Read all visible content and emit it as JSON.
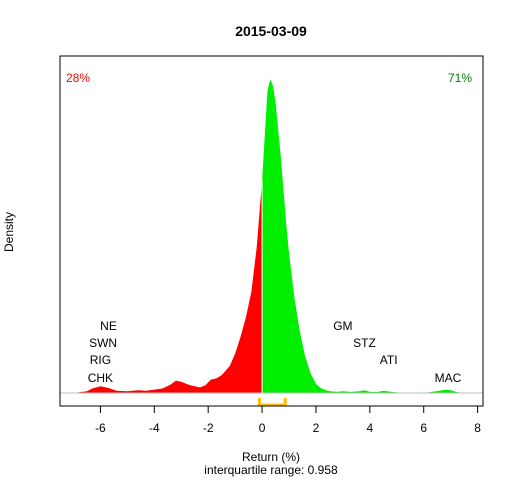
{
  "chart_data": {
    "type": "area",
    "title": "2015-03-09",
    "xlabel": "Return (%)",
    "ylabel": "Density",
    "subtitle": "interquartile range: 0.958",
    "xlim": [
      -7.5,
      8.2
    ],
    "ylim": [
      0,
      0.575
    ],
    "x_ticks": [
      -6,
      -4,
      -2,
      0,
      2,
      4,
      6,
      8
    ],
    "negative_share": "28%",
    "positive_share": "71%",
    "colors": {
      "negative": "#ff0000",
      "positive": "#00ee00",
      "iqr_marker": "#ffc000",
      "neg_label": "#ff0000",
      "pos_label": "#008000"
    },
    "split_at": 0,
    "iqr": [
      -0.1,
      0.86
    ],
    "density": {
      "x": [
        -7.0,
        -6.5,
        -6.3,
        -6.0,
        -5.7,
        -5.4,
        -5.0,
        -4.6,
        -4.3,
        -4.0,
        -3.7,
        -3.4,
        -3.2,
        -3.0,
        -2.8,
        -2.6,
        -2.3,
        -2.1,
        -1.9,
        -1.7,
        -1.5,
        -1.2,
        -1.0,
        -0.8,
        -0.6,
        -0.4,
        -0.2,
        0.0,
        0.1,
        0.2,
        0.3,
        0.4,
        0.5,
        0.6,
        0.7,
        0.8,
        0.9,
        1.0,
        1.2,
        1.4,
        1.6,
        1.8,
        2.0,
        2.2,
        2.5,
        2.8,
        3.0,
        3.3,
        3.6,
        3.8,
        4.0,
        4.3,
        4.5,
        4.8,
        5.0,
        5.3,
        5.6,
        6.0,
        6.3,
        6.6,
        6.8,
        7.0,
        7.2,
        7.4
      ],
      "y": [
        0.0,
        0.003,
        0.008,
        0.012,
        0.009,
        0.004,
        0.003,
        0.005,
        0.004,
        0.006,
        0.008,
        0.015,
        0.022,
        0.02,
        0.016,
        0.013,
        0.01,
        0.014,
        0.024,
        0.026,
        0.032,
        0.048,
        0.07,
        0.1,
        0.135,
        0.18,
        0.26,
        0.38,
        0.46,
        0.54,
        0.56,
        0.55,
        0.52,
        0.47,
        0.42,
        0.36,
        0.3,
        0.25,
        0.17,
        0.11,
        0.065,
        0.035,
        0.016,
        0.008,
        0.003,
        0.002,
        0.003,
        0.002,
        0.003,
        0.005,
        0.002,
        0.002,
        0.004,
        0.002,
        0.001,
        0.0,
        0.0,
        0.0,
        0.002,
        0.004,
        0.006,
        0.005,
        0.002,
        0.0
      ]
    },
    "left_tickers": [
      {
        "label": "NE",
        "x": -5.7,
        "level": 4
      },
      {
        "label": "SWN",
        "x": -5.9,
        "level": 3
      },
      {
        "label": "RIG",
        "x": -6.0,
        "level": 2
      },
      {
        "label": "CHK",
        "x": -6.0,
        "level": 1
      }
    ],
    "right_tickers": [
      {
        "label": "GM",
        "x": 3.0,
        "level": 4
      },
      {
        "label": "STZ",
        "x": 3.8,
        "level": 3
      },
      {
        "label": "ATI",
        "x": 4.7,
        "level": 2
      },
      {
        "label": "MAC",
        "x": 6.9,
        "level": 1
      }
    ]
  }
}
